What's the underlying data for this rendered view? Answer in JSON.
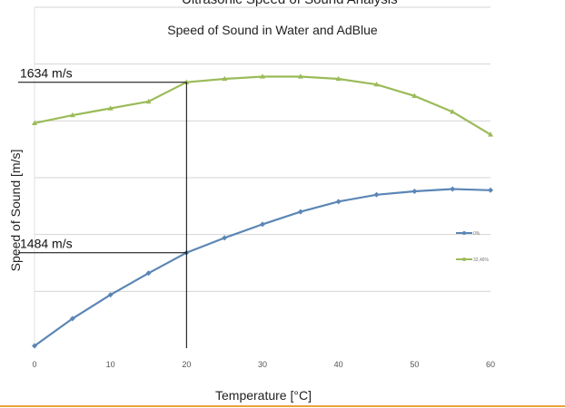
{
  "chart_data": {
    "type": "line",
    "title": "Speed of Sound in Water and AdBlue",
    "xlabel": "Temperature [°C]",
    "ylabel": "Speed of Sound [m/s]",
    "xlim": [
      0,
      60
    ],
    "ylim": [
      1400,
      1700
    ],
    "x_ticks": [
      "0",
      "10",
      "20",
      "30",
      "40",
      "50",
      "60"
    ],
    "grid": "horizontal",
    "x": [
      0,
      5,
      10,
      15,
      20,
      25,
      30,
      35,
      40,
      45,
      50,
      55,
      60
    ],
    "series": [
      {
        "name": "0%",
        "color": "#5b86b5",
        "values": [
          1402,
          1426,
          1447,
          1466,
          1484,
          1497,
          1509,
          1520,
          1529,
          1535,
          1538,
          1540,
          1539
        ]
      },
      {
        "name": "32,46%",
        "color": "#9bbb59",
        "values": [
          1598,
          1605,
          1611,
          1617,
          1634,
          1637,
          1639,
          1639,
          1637,
          1632,
          1622,
          1608,
          1588
        ]
      }
    ],
    "annotations": [
      {
        "text": "1634 m/s",
        "x": 20,
        "y": 1634
      },
      {
        "text": "1484 m/s",
        "x": 20,
        "y": 1484
      }
    ],
    "legend_position": "right",
    "top_clipped_text": "Ultrasonic Speed of Sound Analysis"
  }
}
